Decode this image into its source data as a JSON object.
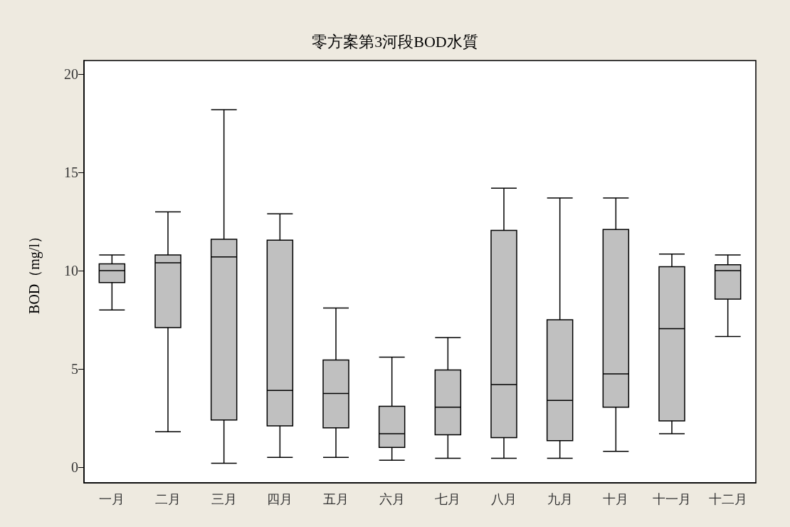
{
  "chart_data": {
    "type": "box",
    "title": "零方案第3河段BOD水質",
    "ylabel": "BOD（mg/l）",
    "categories": [
      "一月",
      "二月",
      "三月",
      "四月",
      "五月",
      "六月",
      "七月",
      "八月",
      "九月",
      "十月",
      "十一月",
      "十二月"
    ],
    "color": "#c0c0c0",
    "boxes": [
      {
        "low": 8.0,
        "q1": 9.4,
        "median": 10.0,
        "q3": 10.35,
        "high": 10.8
      },
      {
        "low": 1.8,
        "q1": 7.1,
        "median": 10.4,
        "q3": 10.8,
        "high": 13.0
      },
      {
        "low": 0.2,
        "q1": 2.4,
        "median": 10.7,
        "q3": 11.6,
        "high": 18.2
      },
      {
        "low": 0.5,
        "q1": 2.1,
        "median": 3.9,
        "q3": 11.55,
        "high": 12.9
      },
      {
        "low": 0.5,
        "q1": 2.0,
        "median": 3.75,
        "q3": 5.45,
        "high": 8.1
      },
      {
        "low": 0.35,
        "q1": 1.0,
        "median": 1.7,
        "q3": 3.1,
        "high": 5.6
      },
      {
        "low": 0.45,
        "q1": 1.65,
        "median": 3.05,
        "q3": 4.95,
        "high": 6.6
      },
      {
        "low": 0.45,
        "q1": 1.5,
        "median": 4.2,
        "q3": 12.05,
        "high": 14.2
      },
      {
        "low": 0.45,
        "q1": 1.35,
        "median": 3.4,
        "q3": 7.5,
        "high": 13.7
      },
      {
        "low": 0.8,
        "q1": 3.05,
        "median": 4.75,
        "q3": 12.1,
        "high": 13.7
      },
      {
        "low": 1.7,
        "q1": 2.35,
        "median": 7.05,
        "q3": 10.2,
        "high": 10.85
      },
      {
        "low": 6.65,
        "q1": 8.55,
        "median": 10.0,
        "q3": 10.3,
        "high": 10.8
      }
    ],
    "ylim": [
      -0.8,
      20.7
    ],
    "yticks": [
      0,
      5,
      10,
      15,
      20
    ],
    "grid": false
  }
}
